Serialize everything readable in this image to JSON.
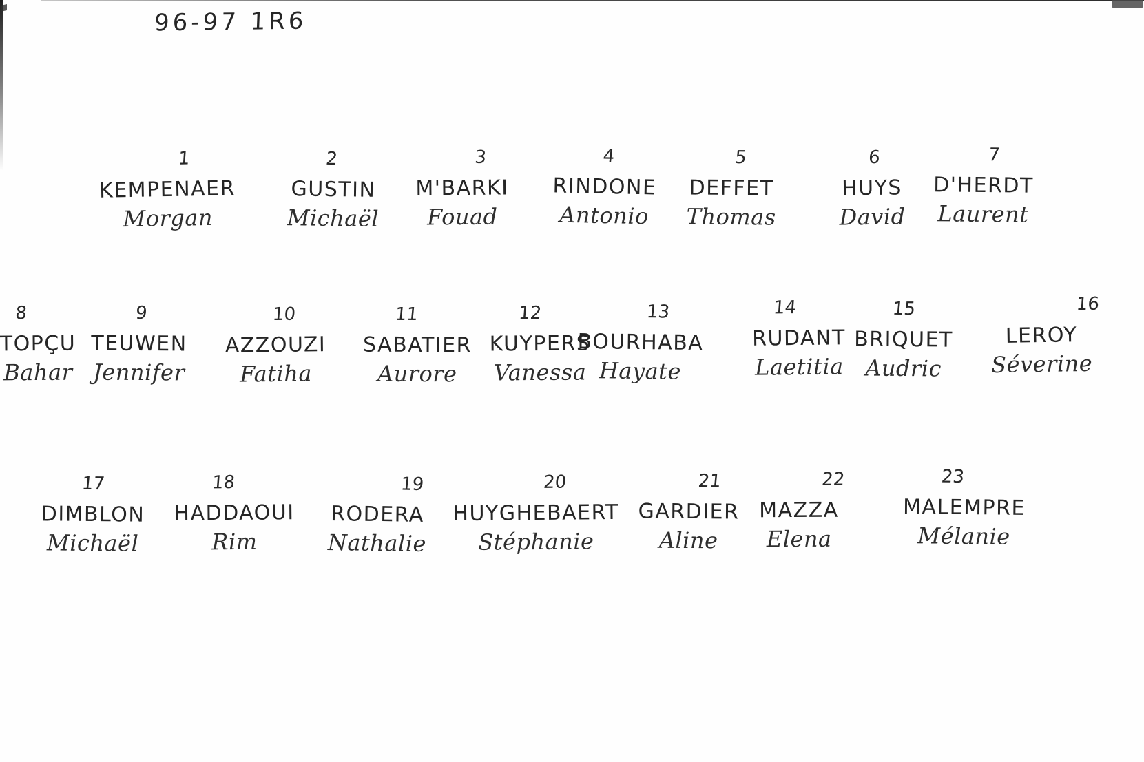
{
  "page": {
    "title": "96-97 1R6"
  },
  "colors": {
    "ink": "#2c2c2c",
    "paper": "#fefefe"
  },
  "roster": [
    {
      "number": "1",
      "surname": "KEMPENAER",
      "first_name": "Morgan"
    },
    {
      "number": "2",
      "surname": "GUSTIN",
      "first_name": "Michaël"
    },
    {
      "number": "3",
      "surname": "M'BARKI",
      "first_name": "Fouad"
    },
    {
      "number": "4",
      "surname": "RINDONE",
      "first_name": "Antonio"
    },
    {
      "number": "5",
      "surname": "DEFFET",
      "first_name": "Thomas"
    },
    {
      "number": "6",
      "surname": "HUYS",
      "first_name": "David"
    },
    {
      "number": "7",
      "surname": "D'HERDT",
      "first_name": "Laurent"
    },
    {
      "number": "8",
      "surname": "TOPÇU",
      "first_name": "Bahar"
    },
    {
      "number": "9",
      "surname": "TEUWEN",
      "first_name": "Jennifer"
    },
    {
      "number": "10",
      "surname": "AZZOUZI",
      "first_name": "Fatiha"
    },
    {
      "number": "11",
      "surname": "SABATIER",
      "first_name": "Aurore"
    },
    {
      "number": "12",
      "surname": "KUYPERS",
      "first_name": "Vanessa"
    },
    {
      "number": "13",
      "surname": "BOURHABA",
      "first_name": "Hayate"
    },
    {
      "number": "14",
      "surname": "RUDANT",
      "first_name": "Laetitia"
    },
    {
      "number": "15",
      "surname": "BRIQUET",
      "first_name": "Audric"
    },
    {
      "number": "16",
      "surname": "LEROY",
      "first_name": "Séverine"
    },
    {
      "number": "17",
      "surname": "DIMBLON",
      "first_name": "Michaël"
    },
    {
      "number": "18",
      "surname": "HADDAOUI",
      "first_name": "Rim"
    },
    {
      "number": "19",
      "surname": "RODERA",
      "first_name": "Nathalie"
    },
    {
      "number": "20",
      "surname": "HUYGHEBAERT",
      "first_name": "Stéphanie"
    },
    {
      "number": "21",
      "surname": "GARDIER",
      "first_name": "Aline"
    },
    {
      "number": "22",
      "surname": "MAZZA",
      "first_name": "Elena"
    },
    {
      "number": "23",
      "surname": "MALEMPRE",
      "first_name": "Mélanie"
    }
  ]
}
